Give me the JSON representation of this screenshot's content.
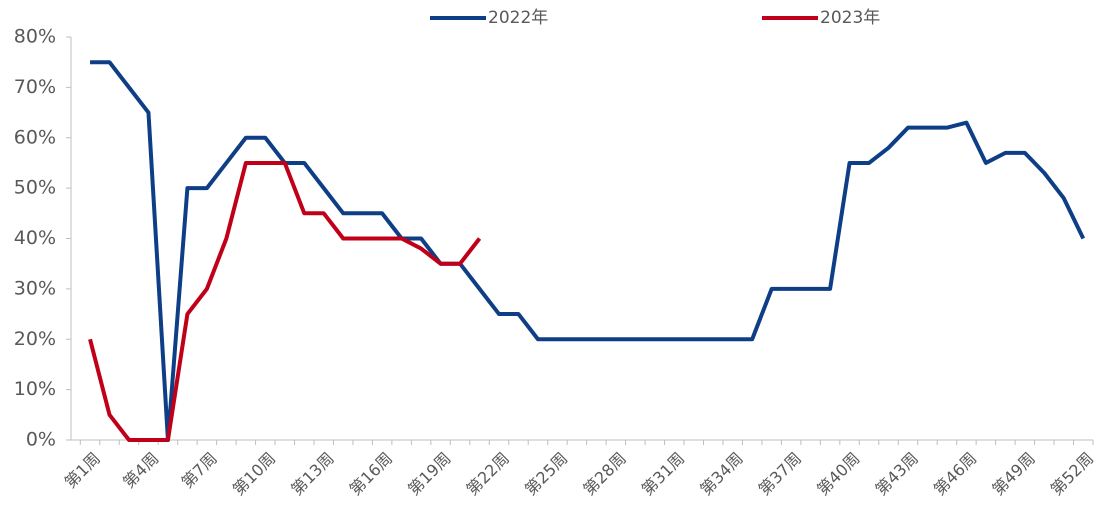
{
  "chart_data": {
    "type": "line",
    "categories": [
      "第1周",
      null,
      null,
      "第4周",
      null,
      null,
      "第7周",
      null,
      null,
      "第10周",
      null,
      null,
      "第13周",
      null,
      null,
      "第16周",
      null,
      null,
      "第19周",
      null,
      null,
      "第22周",
      null,
      null,
      "第25周",
      null,
      null,
      "第28周",
      null,
      null,
      "第31周",
      null,
      null,
      "第34周",
      null,
      null,
      "第37周",
      null,
      null,
      "第40周",
      null,
      null,
      "第43周",
      null,
      null,
      "第46周",
      null,
      null,
      "第49周",
      null,
      null,
      "第52周"
    ],
    "series": [
      {
        "name": "2022年",
        "color": "#0e3e86",
        "values": [
          75,
          75,
          70,
          65,
          0,
          50,
          50,
          55,
          60,
          60,
          55,
          55,
          50,
          45,
          45,
          45,
          40,
          40,
          35,
          35,
          30,
          25,
          25,
          20,
          20,
          20,
          20,
          20,
          20,
          20,
          20,
          20,
          20,
          20,
          20,
          30,
          30,
          30,
          30,
          55,
          55,
          58,
          62,
          62,
          62,
          63,
          55,
          57,
          57,
          53,
          48,
          40
        ]
      },
      {
        "name": "2023年",
        "color": "#c00018",
        "values": [
          20,
          5,
          0,
          0,
          0,
          25,
          30,
          40,
          55,
          55,
          55,
          45,
          45,
          40,
          40,
          40,
          40,
          38,
          35,
          35,
          40,
          null,
          null,
          null,
          null,
          null,
          null,
          null,
          null,
          null,
          null,
          null,
          null,
          null,
          null,
          null,
          null,
          null,
          null,
          null,
          null,
          null,
          null,
          null,
          null,
          null,
          null,
          null,
          null,
          null,
          null,
          null
        ]
      }
    ],
    "ylim": [
      0,
      80
    ],
    "yticks": [
      {
        "value": 0,
        "label": "0%"
      },
      {
        "value": 10,
        "label": "10%"
      },
      {
        "value": 20,
        "label": "20%"
      },
      {
        "value": 30,
        "label": "30%"
      },
      {
        "value": 40,
        "label": "40%"
      },
      {
        "value": 50,
        "label": "50%"
      },
      {
        "value": 60,
        "label": "60%"
      },
      {
        "value": 70,
        "label": "70%"
      },
      {
        "value": 80,
        "label": "80%"
      }
    ],
    "legend": "top",
    "grid": false
  }
}
